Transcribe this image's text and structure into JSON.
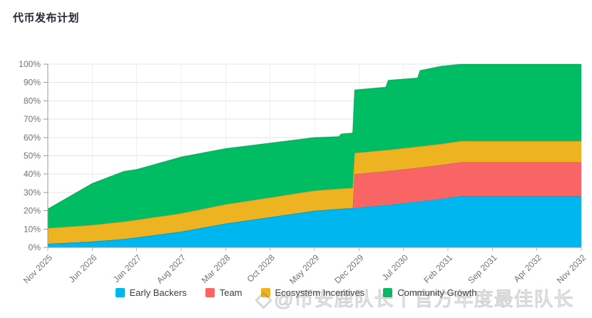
{
  "page": {
    "title": "代币发布计划"
  },
  "watermark": {
    "logo": "◇",
    "text": "@币安鹿队长丨官方年度最佳队长"
  },
  "chart_data": {
    "type": "area",
    "stacked": true,
    "title": "代币发布计划",
    "xlabel": "",
    "ylabel": "",
    "ylim": [
      0,
      100
    ],
    "grid": true,
    "legend_position": "bottom",
    "y_ticks": [
      "0%",
      "10%",
      "20%",
      "30%",
      "40%",
      "50%",
      "60%",
      "70%",
      "80%",
      "90%",
      "100%"
    ],
    "x_ticks": [
      {
        "month": 0,
        "label": "Nov 2025"
      },
      {
        "month": 7,
        "label": "Jun 2026"
      },
      {
        "month": 14,
        "label": "Jan 2027"
      },
      {
        "month": 21,
        "label": "Aug 2027"
      },
      {
        "month": 28,
        "label": "Mar 2028"
      },
      {
        "month": 35,
        "label": "Oct 2028"
      },
      {
        "month": 42,
        "label": "May 2029"
      },
      {
        "month": 49,
        "label": "Dec 2029"
      },
      {
        "month": 56,
        "label": "Jul 2030"
      },
      {
        "month": 63,
        "label": "Feb 2031"
      },
      {
        "month": 70,
        "label": "Sep 2031"
      },
      {
        "month": 77,
        "label": "Apr 2032"
      },
      {
        "month": 84,
        "label": "Nov 2032"
      }
    ],
    "x_range_months": [
      0,
      84
    ],
    "months": [
      0,
      7,
      12,
      14,
      21,
      28,
      35,
      42,
      45.8,
      46.2,
      48,
      48.3,
      53.2,
      53.6,
      58.2,
      58.6,
      62,
      65,
      84
    ],
    "series": [
      {
        "name": "Early Backers",
        "color": "#00b6ef",
        "values": [
          2,
          3.2,
          4.6,
          5.4,
          8.6,
          13,
          16.5,
          20,
          21,
          21.1,
          21.4,
          21.5,
          23.1,
          23.2,
          25,
          25.1,
          26.5,
          28,
          28
        ]
      },
      {
        "name": "Team",
        "color": "#f96464",
        "values": [
          0,
          0,
          0,
          0,
          0,
          0,
          0,
          0,
          0,
          0,
          0,
          18.5,
          18.5,
          18.5,
          18.5,
          18.5,
          18.5,
          18.5,
          18.5
        ]
      },
      {
        "name": "Ecosystem Incentives",
        "color": "#eeb320",
        "values": [
          8.5,
          9,
          9.5,
          9.6,
          10,
          10.5,
          10.7,
          11,
          11,
          11,
          11,
          11.5,
          11.5,
          11.5,
          11.5,
          11.5,
          11.5,
          11.5,
          11.5
        ]
      },
      {
        "name": "Community Growth",
        "color": "#00bc62",
        "values": [
          10.5,
          22.8,
          27.5,
          27.6,
          30.8,
          30.5,
          29.8,
          29,
          28.5,
          29.9,
          30.1,
          34.5,
          34.4,
          38.1,
          37.5,
          41.5,
          42.5,
          42,
          42
        ]
      }
    ]
  }
}
